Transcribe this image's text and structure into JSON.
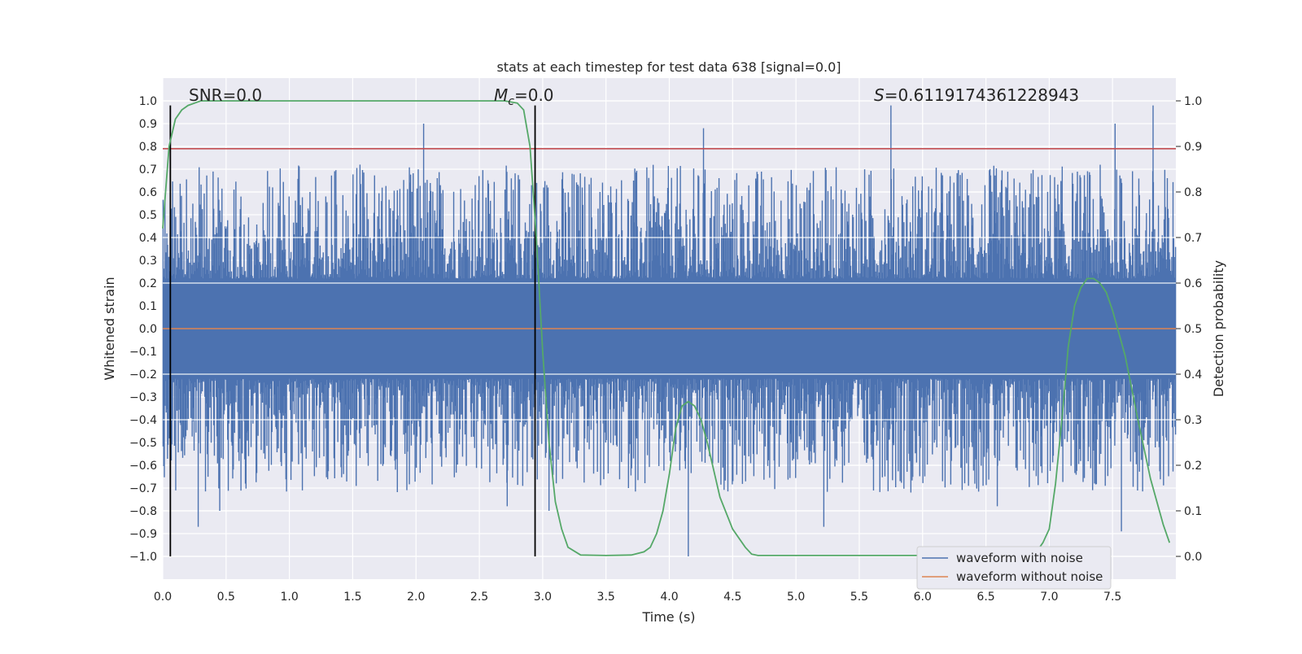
{
  "chart_data": {
    "type": "line",
    "title": "stats at each timestep for test data 638 [signal=0.0]",
    "xlabel": "Time (s)",
    "ylabel": "Whitened strain",
    "y2label": "Detection probability",
    "xlim": [
      0.0,
      8.0
    ],
    "ylim": [
      -1.1,
      1.1
    ],
    "y2lim": [
      -0.05,
      1.05
    ],
    "x_ticks": [
      "0.0",
      "0.5",
      "1.0",
      "1.5",
      "2.0",
      "2.5",
      "3.0",
      "3.5",
      "4.0",
      "4.5",
      "5.0",
      "5.5",
      "6.0",
      "6.5",
      "7.0",
      "7.5"
    ],
    "y_ticks": [
      "1.0",
      "0.9",
      "0.8",
      "0.7",
      "0.6",
      "0.5",
      "0.4",
      "0.3",
      "0.2",
      "0.1",
      "0.0",
      "−0.1",
      "−0.2",
      "−0.3",
      "−0.4",
      "−0.5",
      "−0.6",
      "−0.7",
      "−0.8",
      "−0.9",
      "−1.0"
    ],
    "y2_ticks": [
      "1.0",
      "0.9",
      "0.8",
      "0.7",
      "0.6",
      "0.5",
      "0.4",
      "0.3",
      "0.2",
      "0.1",
      "0.0"
    ],
    "grid": true,
    "legend_position": "lower-right",
    "annotations": {
      "snr": "SNR=0.0",
      "mc_symbol": "M",
      "mc_subscript": "c",
      "mc_value": "=0.0",
      "s_symbol": "S",
      "s_value": "=0.6119174361228943"
    },
    "series": [
      {
        "name": "waveform with noise",
        "axis": "left",
        "color": "#4c72b0",
        "description_values": "dense noise, spikes roughly within [-1.0, 1.0]",
        "peaks": [
          {
            "x": 0.28,
            "y": -0.87
          },
          {
            "x": 0.45,
            "y": -0.8
          },
          {
            "x": 2.06,
            "y": 0.9
          },
          {
            "x": 2.72,
            "y": -0.78
          },
          {
            "x": 3.05,
            "y": -0.8
          },
          {
            "x": 4.15,
            "y": -1.0
          },
          {
            "x": 4.27,
            "y": 0.88
          },
          {
            "x": 5.22,
            "y": -0.87
          },
          {
            "x": 5.75,
            "y": 0.98
          },
          {
            "x": 6.59,
            "y": -0.78
          },
          {
            "x": 7.52,
            "y": 0.9
          },
          {
            "x": 7.57,
            "y": -0.89
          },
          {
            "x": 7.82,
            "y": 0.98
          }
        ]
      },
      {
        "name": "waveform without noise",
        "axis": "left",
        "color": "#dd8452",
        "x": [
          0.0,
          8.0
        ],
        "y": [
          0.0,
          0.0
        ]
      },
      {
        "name": "",
        "axis": "right",
        "color": "#55a868",
        "x": [
          0.0,
          0.05,
          0.1,
          0.15,
          0.2,
          0.25,
          0.3,
          0.35,
          0.4,
          0.5,
          1.0,
          1.5,
          2.0,
          2.5,
          2.7,
          2.8,
          2.85,
          2.9,
          2.95,
          3.0,
          3.05,
          3.1,
          3.15,
          3.2,
          3.3,
          3.5,
          3.7,
          3.8,
          3.85,
          3.9,
          3.95,
          4.0,
          4.05,
          4.1,
          4.15,
          4.2,
          4.25,
          4.3,
          4.35,
          4.4,
          4.5,
          4.6,
          4.65,
          4.7,
          5.0,
          6.0,
          6.8,
          6.9,
          6.95,
          7.0,
          7.05,
          7.1,
          7.15,
          7.2,
          7.25,
          7.3,
          7.35,
          7.4,
          7.45,
          7.5,
          7.6,
          7.7,
          7.8,
          7.9,
          7.95
        ],
        "y": [
          0.72,
          0.9,
          0.96,
          0.98,
          0.99,
          0.995,
          1.0,
          1.0,
          1.0,
          1.0,
          1.0,
          1.0,
          1.0,
          1.0,
          1.0,
          0.995,
          0.98,
          0.9,
          0.7,
          0.45,
          0.25,
          0.12,
          0.06,
          0.02,
          0.003,
          0.002,
          0.003,
          0.01,
          0.02,
          0.05,
          0.1,
          0.18,
          0.28,
          0.33,
          0.34,
          0.33,
          0.3,
          0.25,
          0.19,
          0.13,
          0.06,
          0.02,
          0.005,
          0.002,
          0.002,
          0.002,
          0.003,
          0.01,
          0.03,
          0.06,
          0.16,
          0.3,
          0.46,
          0.55,
          0.59,
          0.61,
          0.61,
          0.6,
          0.58,
          0.54,
          0.44,
          0.3,
          0.17,
          0.07,
          0.03
        ]
      },
      {
        "name": "",
        "axis": "left",
        "color": "#c44e52",
        "type": "hline",
        "y": 0.79
      },
      {
        "name": "",
        "axis": "left",
        "color": "#000000",
        "type": "vline",
        "x": 0.06,
        "y_range": [
          -1.0,
          0.98
        ]
      },
      {
        "name": "",
        "axis": "left",
        "color": "#000000",
        "type": "vline",
        "x": 2.94,
        "y_range": [
          -1.0,
          0.98
        ]
      }
    ]
  }
}
